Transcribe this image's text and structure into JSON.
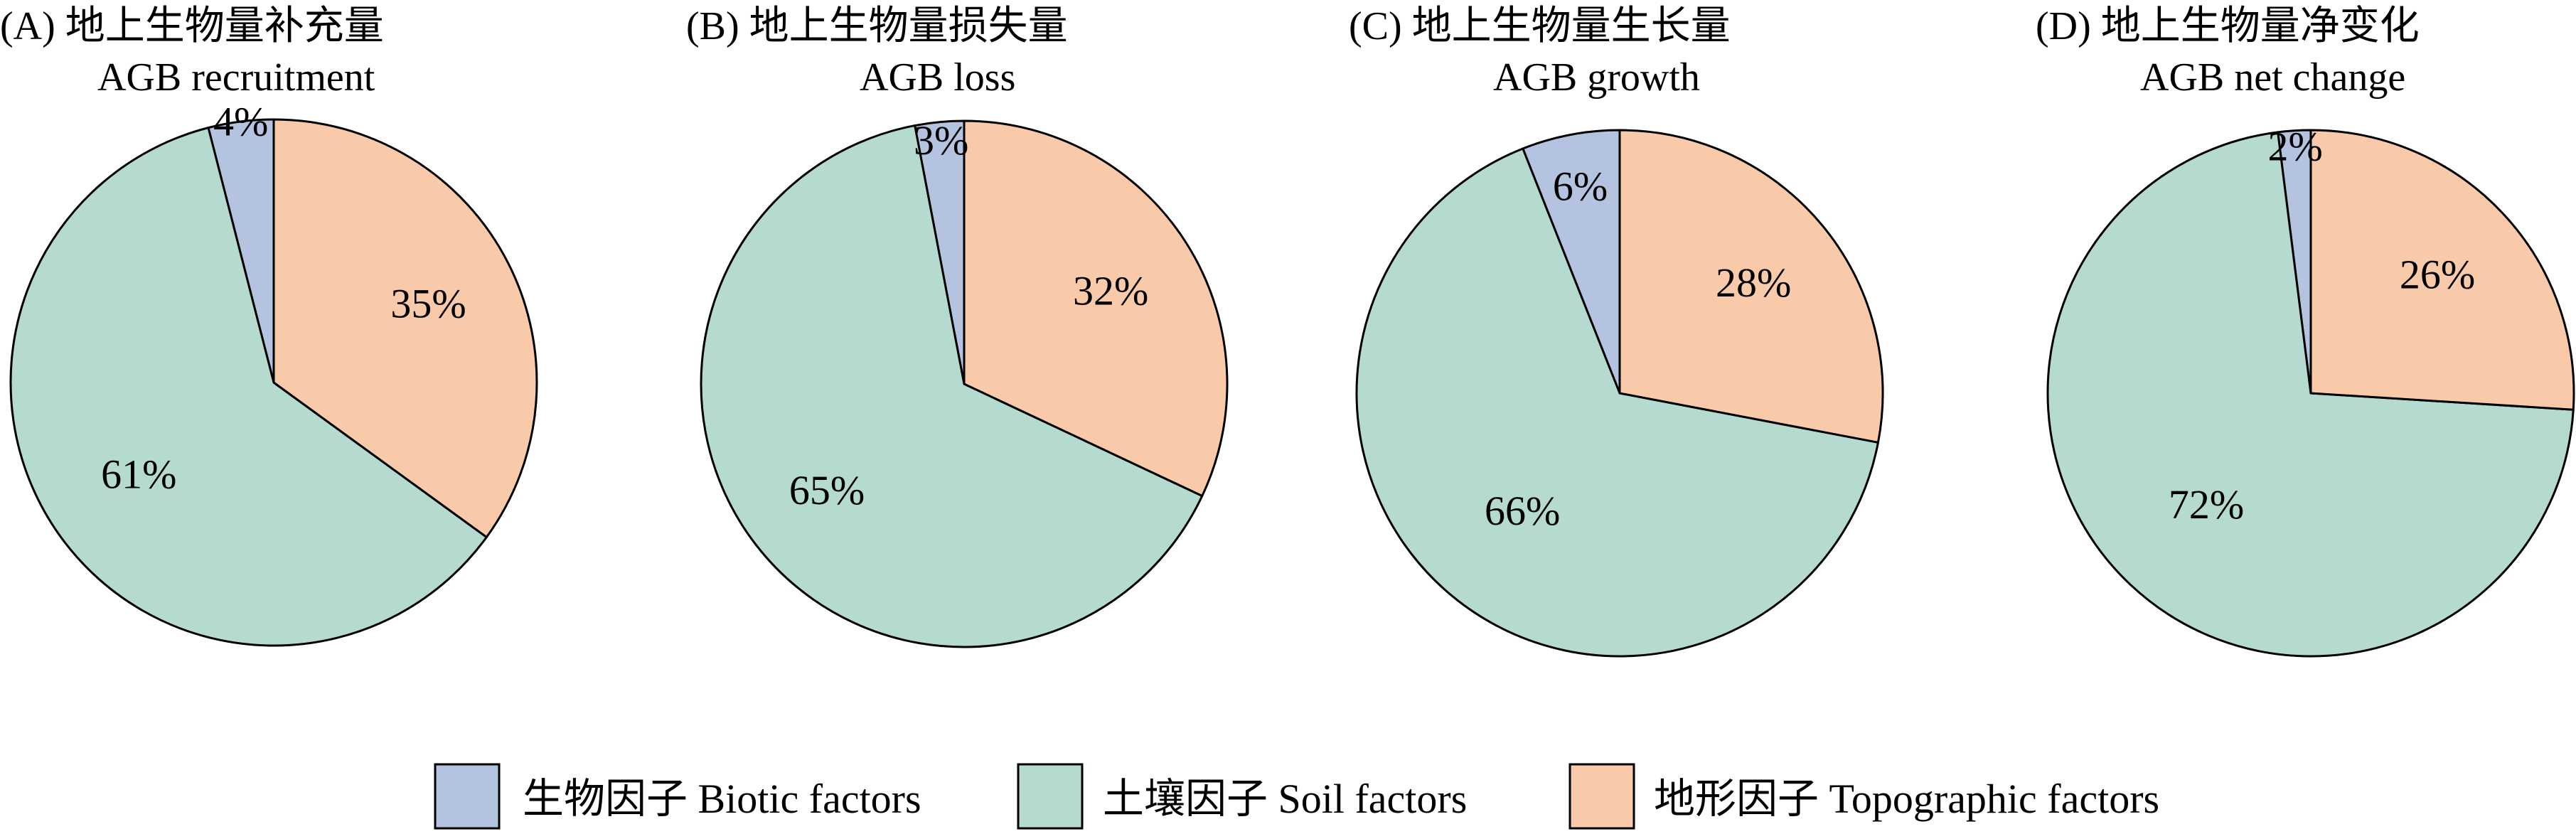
{
  "colors": {
    "biotic": "#b4c3df",
    "soil": "#b5dbd0",
    "topographic": "#f8caa9",
    "stroke": "#000000"
  },
  "chart_data": [
    {
      "type": "pie",
      "title": "(A) 地上生物量补充量",
      "subtitle": "AGB recruitment",
      "categories": [
        "生物因子 Biotic factors",
        "土壤因子 Soil factors",
        "地形因子 Topographic factors"
      ],
      "values": [
        4,
        61,
        35
      ],
      "labels": [
        "4%",
        "61%",
        "35%"
      ]
    },
    {
      "type": "pie",
      "title": "(B) 地上生物量损失量",
      "subtitle": "AGB loss",
      "categories": [
        "生物因子 Biotic factors",
        "土壤因子 Soil factors",
        "地形因子 Topographic factors"
      ],
      "values": [
        3,
        65,
        32
      ],
      "labels": [
        "3%",
        "65%",
        "32%"
      ]
    },
    {
      "type": "pie",
      "title": "(C) 地上生物量生长量",
      "subtitle": "AGB growth",
      "categories": [
        "生物因子 Biotic factors",
        "土壤因子 Soil factors",
        "地形因子 Topographic factors"
      ],
      "values": [
        6,
        66,
        28
      ],
      "labels": [
        "6%",
        "66%",
        "28%"
      ]
    },
    {
      "type": "pie",
      "title": "(D) 地上生物量净变化",
      "subtitle": "AGB net change",
      "categories": [
        "生物因子 Biotic factors",
        "土壤因子 Soil factors",
        "地形因子 Topographic factors"
      ],
      "values": [
        2,
        72,
        26
      ],
      "labels": [
        "2%",
        "72%",
        "26%"
      ]
    }
  ],
  "legend": {
    "placement": "bottom",
    "items": [
      {
        "label": "生物因子 Biotic factors",
        "color_key": "biotic"
      },
      {
        "label": "土壤因子 Soil factors",
        "color_key": "soil"
      },
      {
        "label": "地形因子 Topographic factors",
        "color_key": "topographic"
      }
    ]
  }
}
